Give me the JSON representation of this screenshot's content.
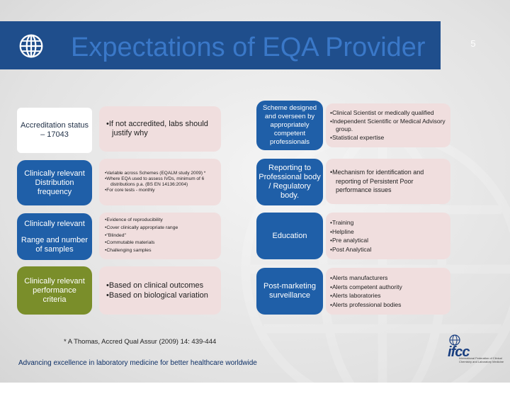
{
  "title": "Expectations of EQA Provider",
  "slide_number": "5",
  "left_rows": [
    {
      "label": "Accreditation status – 17043",
      "items": [
        "If not accredited, labs should justify  why"
      ]
    },
    {
      "label": "Clinically relevant Distribution frequency",
      "items": [
        "Variable across Schemes (EQALM study 2009) *",
        "Where EQA used to assess IVDs, minimum of 6 distributions p.a. (BS EN 14136:2004)",
        "For core tests - monthly"
      ]
    },
    {
      "label_line1": "Clinically relevant",
      "label_line2": "Range and number of samples",
      "items": [
        "Evidence of reproducibility",
        "Cover clinically appropriate range",
        "\"Blinded\"",
        "Commutable materials",
        "Challenging samples"
      ]
    },
    {
      "label": "Clinically relevant performance criteria",
      "items": [
        "Based on clinical outcomes",
        "Based on biological variation"
      ]
    }
  ],
  "right_rows": [
    {
      "label": "Scheme designed and overseen by appropriately competent professionals",
      "items": [
        "Clinical Scientist or medically qualified",
        "Independent Scientific or Medical Advisory group.",
        "Statistical expertise"
      ]
    },
    {
      "label": "Reporting to Professional body / Regulatory body.",
      "items": [
        "Mechanism for identification and reporting of Persistent Poor performance  issues"
      ]
    },
    {
      "label": "Education",
      "items": [
        "Training",
        "Helpline",
        "Pre analytical",
        "Post Analytical"
      ]
    },
    {
      "label": "Post-marketing surveillance",
      "items": [
        "Alerts manufacturers",
        "Alerts competent authority",
        "Alerts laboratories",
        "Alerts professional bodies"
      ]
    }
  ],
  "footnote": "* A Thomas, Accred Qual Assur (2009) 14: 439-444",
  "footer": "Advancing excellence in laboratory medicine for better healthcare worldwide",
  "logo": {
    "text": "ifcc",
    "tagline": "International Federation of Clinical Chemistry and Laboratory Medicine"
  }
}
